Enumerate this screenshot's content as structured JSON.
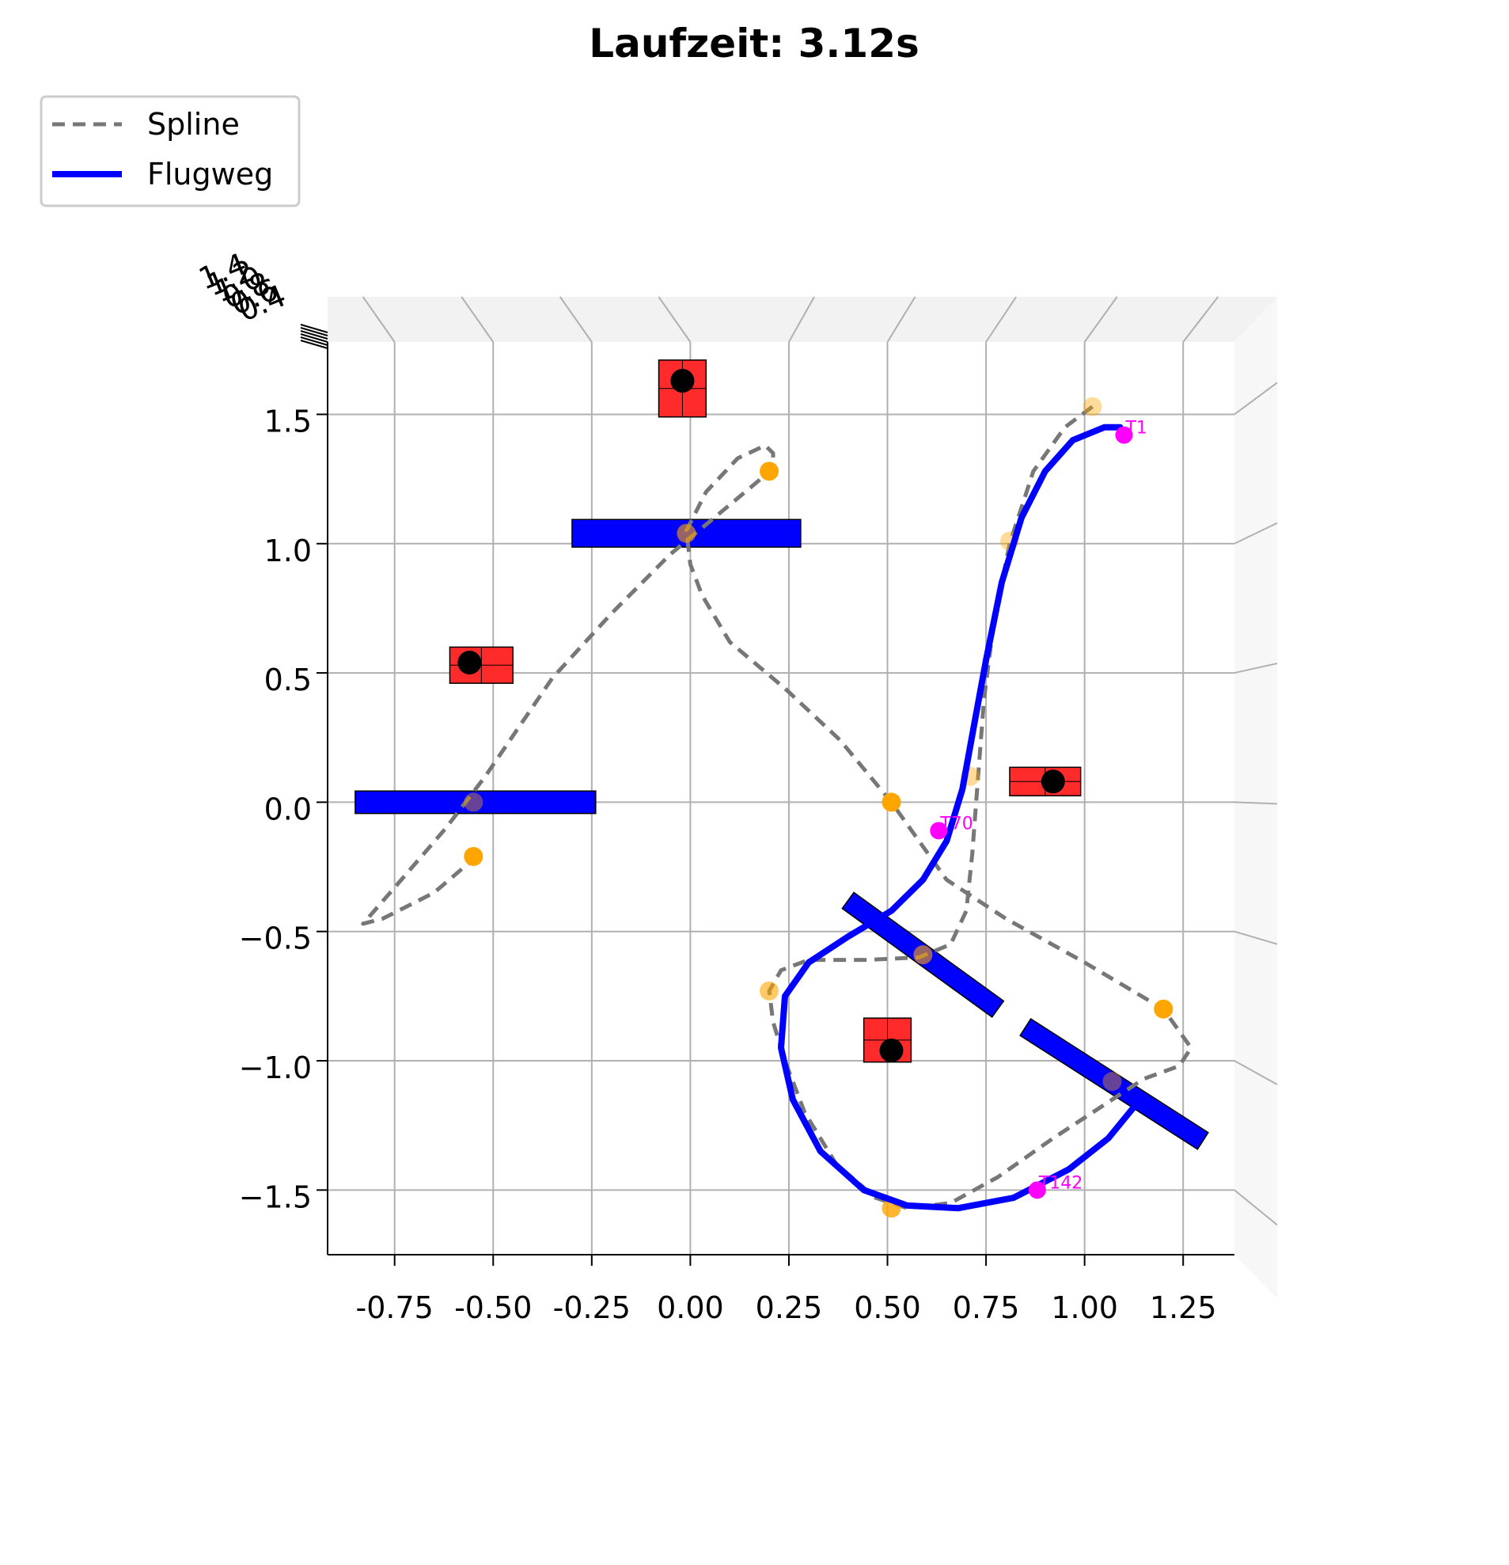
{
  "chart_data": {
    "type": "scatter",
    "title": "Laufzeit: 3.12s",
    "xlim": [
      -0.92,
      1.38
    ],
    "ylim": [
      -1.75,
      1.78
    ],
    "x_ticks": [
      "-0.75",
      "-0.50",
      "-0.25",
      "0.00",
      "0.25",
      "0.50",
      "0.75",
      "1.00",
      "1.25"
    ],
    "x_tick_values": [
      -0.75,
      -0.5,
      -0.25,
      0.0,
      0.25,
      0.5,
      0.75,
      1.0,
      1.25
    ],
    "y_ticks": [
      "1.5",
      "1.0",
      "0.5",
      "0.0",
      "−0.5",
      "−1.0",
      "−1.5"
    ],
    "y_tick_values": [
      1.5,
      1.0,
      0.5,
      0.0,
      -0.5,
      -1.0,
      -1.5
    ],
    "z_ticks": [
      "1.4",
      "1.2",
      "1.0",
      "0.8",
      "0.6",
      "0.4"
    ],
    "grid": true,
    "legend": {
      "placement": "top-left",
      "entries": [
        {
          "label": "Spline",
          "style": "dashed",
          "color": "#777777"
        },
        {
          "label": "Flugweg",
          "style": "solid",
          "color": "#0000ff"
        }
      ]
    },
    "series": [
      {
        "name": "Spline",
        "color": "#777777",
        "style": "dashed",
        "points": [
          [
            1.02,
            1.53
          ],
          [
            0.95,
            1.45
          ],
          [
            0.87,
            1.28
          ],
          [
            0.81,
            1.0
          ],
          [
            0.77,
            0.7
          ],
          [
            0.745,
            0.4
          ],
          [
            0.73,
            0.1
          ],
          [
            0.715,
            -0.2
          ],
          [
            0.7,
            -0.42
          ],
          [
            0.66,
            -0.55
          ],
          [
            0.58,
            -0.6
          ],
          [
            0.45,
            -0.61
          ],
          [
            0.3,
            -0.61
          ],
          [
            0.23,
            -0.65
          ],
          [
            0.2,
            -0.73
          ],
          [
            0.21,
            -0.85
          ],
          [
            0.24,
            -1.0
          ],
          [
            0.29,
            -1.2
          ],
          [
            0.37,
            -1.4
          ],
          [
            0.47,
            -1.53
          ],
          [
            0.55,
            -1.57
          ],
          [
            0.66,
            -1.55
          ],
          [
            0.78,
            -1.45
          ],
          [
            0.92,
            -1.3
          ],
          [
            1.05,
            -1.17
          ],
          [
            1.15,
            -1.07
          ],
          [
            1.24,
            -1.02
          ],
          [
            1.27,
            -0.95
          ],
          [
            1.2,
            -0.8
          ],
          [
            1.0,
            -0.62
          ],
          [
            0.8,
            -0.45
          ],
          [
            0.65,
            -0.3
          ],
          [
            0.51,
            0.0
          ],
          [
            0.38,
            0.24
          ],
          [
            0.24,
            0.44
          ],
          [
            0.1,
            0.62
          ],
          [
            0.03,
            0.8
          ],
          [
            0.0,
            0.92
          ],
          [
            -0.01,
            1.05
          ],
          [
            0.04,
            1.2
          ],
          [
            0.12,
            1.33
          ],
          [
            0.19,
            1.38
          ],
          [
            0.21,
            1.35
          ],
          [
            0.21,
            1.29
          ],
          [
            0.1,
            1.15
          ],
          [
            -0.05,
            0.96
          ],
          [
            -0.2,
            0.73
          ],
          [
            -0.35,
            0.48
          ],
          [
            -0.52,
            0.1
          ],
          [
            -0.62,
            -0.1
          ],
          [
            -0.75,
            -0.33
          ],
          [
            -0.83,
            -0.47
          ],
          [
            -0.78,
            -0.45
          ],
          [
            -0.65,
            -0.35
          ],
          [
            -0.55,
            -0.22
          ]
        ]
      },
      {
        "name": "Flugweg",
        "color": "#0000ff",
        "style": "solid",
        "points": [
          [
            1.1,
            1.42
          ],
          [
            1.09,
            1.45
          ],
          [
            1.05,
            1.45
          ],
          [
            0.97,
            1.4
          ],
          [
            0.9,
            1.28
          ],
          [
            0.84,
            1.1
          ],
          [
            0.79,
            0.85
          ],
          [
            0.75,
            0.55
          ],
          [
            0.72,
            0.3
          ],
          [
            0.69,
            0.05
          ],
          [
            0.65,
            -0.15
          ],
          [
            0.59,
            -0.3
          ],
          [
            0.51,
            -0.42
          ],
          [
            0.4,
            -0.52
          ],
          [
            0.3,
            -0.62
          ],
          [
            0.24,
            -0.75
          ],
          [
            0.23,
            -0.95
          ],
          [
            0.26,
            -1.15
          ],
          [
            0.33,
            -1.35
          ],
          [
            0.44,
            -1.5
          ],
          [
            0.55,
            -1.56
          ],
          [
            0.68,
            -1.57
          ],
          [
            0.82,
            -1.53
          ],
          [
            0.96,
            -1.42
          ],
          [
            1.06,
            -1.3
          ],
          [
            1.13,
            -1.17
          ]
        ]
      }
    ],
    "waypoints": [
      [
        1.02,
        1.53,
        0.4
      ],
      [
        0.2,
        1.28,
        1.0
      ],
      [
        0.81,
        1.01,
        0.4
      ],
      [
        -0.01,
        1.04,
        0.6
      ],
      [
        0.71,
        0.1,
        0.4
      ],
      [
        -0.55,
        0.0,
        0.4
      ],
      [
        0.51,
        0.0,
        1.0
      ],
      [
        -0.55,
        -0.21,
        1.0
      ],
      [
        0.59,
        -0.59,
        0.6
      ],
      [
        0.2,
        -0.73,
        0.6
      ],
      [
        1.2,
        -0.8,
        1.0
      ],
      [
        1.07,
        -1.08,
        0.4
      ],
      [
        0.51,
        -1.57,
        0.8
      ]
    ],
    "trajectory_markers": [
      {
        "label": "T1",
        "x": 1.1,
        "y": 1.42
      },
      {
        "label": "T70",
        "x": 0.63,
        "y": -0.11
      },
      {
        "label": "T142",
        "x": 0.88,
        "y": -1.5
      }
    ],
    "obstacles": [
      {
        "kind": "box",
        "x": -0.02,
        "y": 1.6,
        "w": 0.12,
        "h": 0.22,
        "center": [
          -0.02,
          1.63
        ]
      },
      {
        "kind": "box",
        "x": -0.53,
        "y": 0.53,
        "w": 0.16,
        "h": 0.14,
        "center": [
          -0.56,
          0.54
        ]
      },
      {
        "kind": "box",
        "x": 0.9,
        "y": 0.08,
        "w": 0.18,
        "h": 0.11,
        "center": [
          0.92,
          0.08
        ]
      },
      {
        "kind": "box",
        "x": 0.5,
        "y": -0.92,
        "w": 0.12,
        "h": 0.17,
        "center": [
          0.51,
          -0.96
        ]
      }
    ],
    "gates": [
      {
        "from": [
          -0.3,
          1.04
        ],
        "to": [
          0.28,
          1.04
        ],
        "thickness": 0.07
      },
      {
        "from": [
          -0.85,
          0.0
        ],
        "to": [
          -0.24,
          0.0
        ],
        "thickness": 0.05
      },
      {
        "from": [
          0.4,
          -0.38
        ],
        "to": [
          0.78,
          -0.8
        ],
        "thickness": 0.04
      },
      {
        "from": [
          0.85,
          -0.87
        ],
        "to": [
          1.3,
          -1.31
        ],
        "thickness": 0.04
      }
    ]
  },
  "colors": {
    "obstacle": "#ff2a2a",
    "obstacle_center": "#000000",
    "gate": "#0000ff",
    "waypoint": "#ffa500",
    "marker": "#ff00ff",
    "pane": "#efefef"
  }
}
